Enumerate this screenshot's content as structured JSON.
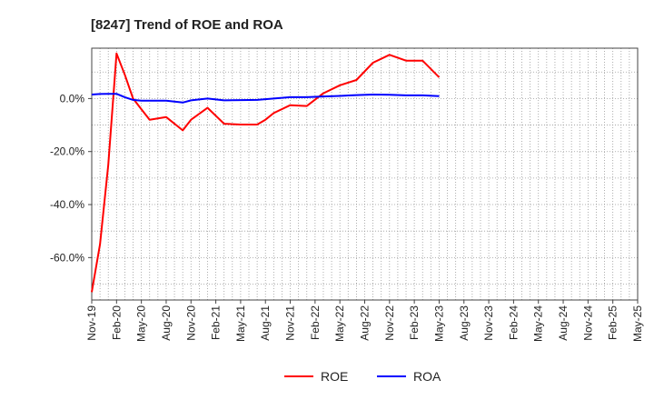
{
  "chart_data": {
    "type": "line",
    "title": "[8247]  Trend of ROE and ROA",
    "xlabel": "",
    "ylabel": "",
    "ylim": [
      -76,
      19
    ],
    "yticks": [
      0,
      -20,
      -40,
      -60
    ],
    "ytick_labels": [
      "0.0%",
      "-20.0%",
      "-40.0%",
      "-60.0%"
    ],
    "x_tick_labels": [
      "Nov-19",
      "Feb-20",
      "May-20",
      "Aug-20",
      "Nov-20",
      "Feb-21",
      "May-21",
      "Aug-21",
      "Nov-21",
      "Feb-22",
      "May-22",
      "Aug-22",
      "Nov-22",
      "Feb-23",
      "May-23",
      "Aug-23",
      "Nov-23",
      "Feb-24",
      "May-24",
      "Aug-24",
      "Nov-24",
      "Feb-25",
      "May-25"
    ],
    "grid": true,
    "legend_position": "bottom-center",
    "series": [
      {
        "name": "ROE",
        "color": "#ff0000",
        "points": [
          [
            0,
            -73
          ],
          [
            1,
            -55
          ],
          [
            2,
            -25
          ],
          [
            3,
            17
          ],
          [
            4,
            9
          ],
          [
            5,
            0
          ],
          [
            6,
            -4
          ],
          [
            7,
            -8
          ],
          [
            9,
            -7
          ],
          [
            11,
            -12
          ],
          [
            12,
            -8
          ],
          [
            14,
            -3.5
          ],
          [
            16,
            -9.5
          ],
          [
            18,
            -9.8
          ],
          [
            20,
            -9.8
          ],
          [
            21,
            -8
          ],
          [
            22,
            -5.5
          ],
          [
            24,
            -2.5
          ],
          [
            26,
            -2.8
          ],
          [
            28,
            2
          ],
          [
            30,
            5
          ],
          [
            32,
            7
          ],
          [
            34,
            13.5
          ],
          [
            36,
            16.5
          ],
          [
            38,
            14.3
          ],
          [
            40,
            14.3
          ],
          [
            42,
            8
          ]
        ]
      },
      {
        "name": "ROA",
        "color": "#0000ff",
        "points": [
          [
            0,
            1.5
          ],
          [
            1,
            1.7
          ],
          [
            2,
            1.8
          ],
          [
            3,
            1.8
          ],
          [
            4,
            0.5
          ],
          [
            5,
            -0.5
          ],
          [
            6,
            -0.8
          ],
          [
            7,
            -0.8
          ],
          [
            9,
            -0.8
          ],
          [
            11,
            -1.5
          ],
          [
            12,
            -0.7
          ],
          [
            14,
            0
          ],
          [
            16,
            -0.7
          ],
          [
            18,
            -0.6
          ],
          [
            20,
            -0.5
          ],
          [
            22,
            0
          ],
          [
            24,
            0.5
          ],
          [
            26,
            0.5
          ],
          [
            28,
            0.8
          ],
          [
            30,
            1
          ],
          [
            32,
            1.3
          ],
          [
            34,
            1.5
          ],
          [
            36,
            1.4
          ],
          [
            38,
            1.2
          ],
          [
            40,
            1.2
          ],
          [
            42,
            0.9
          ]
        ]
      }
    ]
  }
}
